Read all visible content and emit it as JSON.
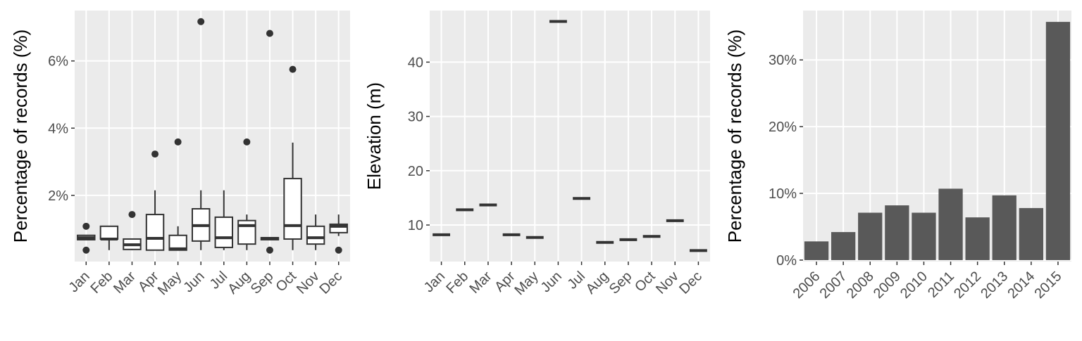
{
  "chart_data": [
    {
      "type": "box",
      "y_label": "Percentage of records (%)",
      "categories": [
        "Jan",
        "Feb",
        "Mar",
        "Apr",
        "May",
        "Jun",
        "Jul",
        "Aug",
        "Sep",
        "Oct",
        "Nov",
        "Dec"
      ],
      "boxes": [
        {
          "low": 0.68,
          "q1": 0.68,
          "median": 0.74,
          "q3": 0.81,
          "high": 0.81,
          "outliers": [
            1.08,
            0.37
          ]
        },
        {
          "low": 0.37,
          "q1": 0.7,
          "median": 0.7,
          "q3": 1.08,
          "high": 1.08,
          "outliers": []
        },
        {
          "low": 0.37,
          "q1": 0.39,
          "median": 0.53,
          "q3": 0.7,
          "high": 0.72,
          "outliers": [
            1.43
          ]
        },
        {
          "low": 0.37,
          "q1": 0.37,
          "median": 0.72,
          "q3": 1.43,
          "high": 2.15,
          "outliers": [
            3.23
          ]
        },
        {
          "low": 0.37,
          "q1": 0.37,
          "median": 0.41,
          "q3": 0.81,
          "high": 1.08,
          "outliers": [
            3.59
          ]
        },
        {
          "low": 0.37,
          "q1": 0.64,
          "median": 1.1,
          "q3": 1.6,
          "high": 2.15,
          "outliers": [
            7.17
          ]
        },
        {
          "low": 0.37,
          "q1": 0.45,
          "median": 0.74,
          "q3": 1.35,
          "high": 2.15,
          "outliers": []
        },
        {
          "low": 0.37,
          "q1": 0.55,
          "median": 1.1,
          "q3": 1.25,
          "high": 1.43,
          "outliers": [
            3.59
          ]
        },
        {
          "low": 0.68,
          "q1": 0.68,
          "median": 0.72,
          "q3": 0.74,
          "high": 0.74,
          "outliers": [
            6.82,
            0.37
          ]
        },
        {
          "low": 0.37,
          "q1": 0.7,
          "median": 1.1,
          "q3": 2.5,
          "high": 3.57,
          "outliers": [
            5.75
          ]
        },
        {
          "low": 0.37,
          "q1": 0.55,
          "median": 0.74,
          "q3": 1.08,
          "high": 1.43,
          "outliers": []
        },
        {
          "low": 0.79,
          "q1": 0.89,
          "median": 1.08,
          "q3": 1.14,
          "high": 1.43,
          "outliers": [
            0.37
          ]
        }
      ],
      "ylim": [
        0.03,
        7.5
      ],
      "yticks": [
        {
          "value": 2,
          "label": "2%"
        },
        {
          "value": 4,
          "label": "4%"
        },
        {
          "value": 6,
          "label": "6%"
        }
      ],
      "grid": true,
      "color": "#333333"
    },
    {
      "type": "dash",
      "y_label": "Elevation (m)",
      "categories": [
        "Jan",
        "Feb",
        "Mar",
        "Apr",
        "May",
        "Jun",
        "Jul",
        "Aug",
        "Sep",
        "Oct",
        "Nov",
        "Dec"
      ],
      "values": [
        8.2,
        12.8,
        13.7,
        8.2,
        7.7,
        47.5,
        14.9,
        6.8,
        7.3,
        7.9,
        10.8,
        5.3
      ],
      "ylim": [
        3.27,
        49.5
      ],
      "yticks": [
        10,
        20,
        30,
        40
      ],
      "grid": true,
      "color": "#333333"
    },
    {
      "type": "bar",
      "y_label": "Percentage of records (%)",
      "categories": [
        "2006",
        "2007",
        "2008",
        "2009",
        "2010",
        "2011",
        "2012",
        "2013",
        "2014",
        "2015"
      ],
      "values": [
        2.8,
        4.2,
        7.1,
        8.2,
        7.1,
        10.7,
        6.4,
        9.7,
        7.8,
        35.7
      ],
      "ylim": [
        -0.22,
        37.4
      ],
      "yticks": [
        {
          "value": 0,
          "label": "0%"
        },
        {
          "value": 10,
          "label": "10%"
        },
        {
          "value": 20,
          "label": "20%"
        },
        {
          "value": 30,
          "label": "30%"
        }
      ],
      "grid": true,
      "color": "#595959"
    }
  ]
}
